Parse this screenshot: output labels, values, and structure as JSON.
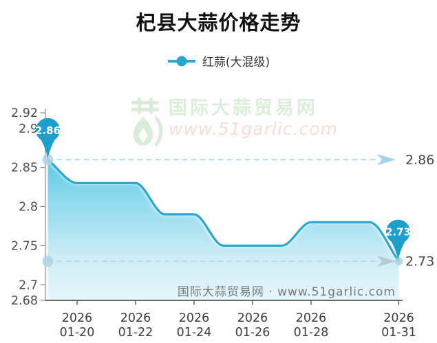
{
  "title": "杞县大蒜价格走势",
  "legend": {
    "label": "红蒜(大混级)",
    "marker_color": "#29a7ce"
  },
  "watermark_top": {
    "site_name": "国际大蒜贸易网",
    "site_url": "www.51garlic.com"
  },
  "watermark_bottom": {
    "text": "国际大蒜贸易网 · www.51garlic.com"
  },
  "chart_data": {
    "type": "line",
    "title": "杞县大蒜价格走势",
    "series": [
      {
        "name": "红蒜(大混级)",
        "x": [
          "2026-01-19",
          "2026-01-20",
          "2026-01-21",
          "2026-01-22",
          "2026-01-23",
          "2026-01-24",
          "2026-01-25",
          "2026-01-26",
          "2026-01-27",
          "2026-01-28",
          "2026-01-29",
          "2026-01-30",
          "2026-01-31"
        ],
        "values": [
          2.86,
          2.83,
          2.83,
          2.83,
          2.79,
          2.79,
          2.75,
          2.75,
          2.75,
          2.78,
          2.78,
          2.78,
          2.73
        ]
      }
    ],
    "x_tick_labels": [
      {
        "year": "2026",
        "date": "01-20",
        "day_index": 1
      },
      {
        "year": "2026",
        "date": "01-22",
        "day_index": 3
      },
      {
        "year": "2026",
        "date": "01-24",
        "day_index": 5
      },
      {
        "year": "2026",
        "date": "01-26",
        "day_index": 7
      },
      {
        "year": "2026",
        "date": "01-28",
        "day_index": 9
      },
      {
        "year": "2026",
        "date": "01-31",
        "day_index": 12
      }
    ],
    "y_ticks": [
      {
        "label": "2.92",
        "value": 2.92
      },
      {
        "label": "2.9",
        "value": 2.9
      },
      {
        "label": "2.85",
        "value": 2.85
      },
      {
        "label": "2.8",
        "value": 2.8
      },
      {
        "label": "2.75",
        "value": 2.75
      },
      {
        "label": "2.7",
        "value": 2.7
      },
      {
        "label": "2.68",
        "value": 2.68
      }
    ],
    "ylim": [
      2.68,
      2.92
    ],
    "grid": false,
    "legend_position": "top",
    "smooth": true,
    "annotations": {
      "start_pin": {
        "label": "2.86",
        "value": 2.86,
        "point_index": 0
      },
      "end_pin": {
        "label": "2.73",
        "value": 2.73,
        "point_index": 12
      },
      "ref_lines": [
        {
          "label": "2.86",
          "value": 2.86,
          "style": "dashed-arrow-cyan"
        },
        {
          "label": "2.73",
          "value": 2.73,
          "style": "dashed-arrow-gray"
        }
      ]
    },
    "colors": {
      "line": "#2aa7cf",
      "pin": "#1d9fcb",
      "pin_text": "#ffffff",
      "dot": "#aed3e0",
      "area_top": "#55c6e3",
      "area_mid": "#8ad9ec",
      "area_low": "#cdecf6",
      "area_bottom": "#e4f5fa",
      "ref_cyan": "#a5d8e9",
      "ref_cyan_arrow": "#9fd3e6",
      "ref_gray": "#c8d3d7",
      "ref_gray_arrow": "#b7c9d1",
      "axis_x": "#3a3a3a",
      "axis_y": "#8a8a8a",
      "tick_label": "#4d4d4d",
      "ref_label": "#4a4a4a"
    }
  }
}
